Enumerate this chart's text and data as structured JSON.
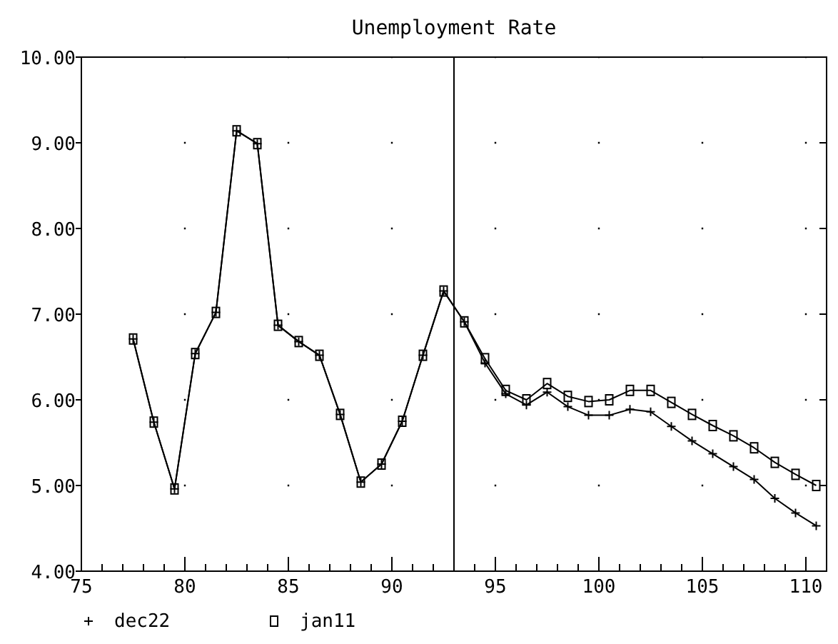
{
  "chart_data": {
    "type": "line",
    "title": "Unemployment Rate",
    "x": [
      77.5,
      78.5,
      79.5,
      80.5,
      81.5,
      82.5,
      83.5,
      84.5,
      85.5,
      86.5,
      87.5,
      88.5,
      89.5,
      90.5,
      91.5,
      92.5,
      93.5,
      94.5,
      95.5,
      96.5,
      97.5,
      98.5,
      99.5,
      100.5,
      101.5,
      102.5,
      103.5,
      104.5,
      105.5,
      106.5,
      107.5,
      108.5,
      109.5,
      110.5
    ],
    "series": [
      {
        "name": "dec22",
        "color": "#000000",
        "marker": "cross",
        "values": [
          6.71,
          5.74,
          4.96,
          6.54,
          7.02,
          9.14,
          8.99,
          6.87,
          6.68,
          6.52,
          5.83,
          5.04,
          5.25,
          5.75,
          6.52,
          7.27,
          6.91,
          6.43,
          6.07,
          5.94,
          6.09,
          5.92,
          5.82,
          5.82,
          5.89,
          5.86,
          5.69,
          5.52,
          5.37,
          5.22,
          5.07,
          4.85,
          4.68,
          4.53
        ]
      },
      {
        "name": "jan11",
        "color": "#000000",
        "marker": "square",
        "values": [
          6.71,
          5.74,
          4.96,
          6.54,
          7.02,
          9.14,
          8.99,
          6.87,
          6.68,
          6.52,
          5.83,
          5.04,
          5.25,
          5.75,
          6.52,
          7.27,
          6.91,
          6.48,
          6.11,
          6.0,
          6.19,
          6.04,
          5.98,
          6.0,
          6.11,
          6.11,
          5.97,
          5.83,
          5.7,
          5.58,
          5.44,
          5.27,
          5.13,
          5.0
        ]
      }
    ],
    "xlim": [
      75,
      111
    ],
    "xticks": [
      75,
      {
        "value": 76,
        "label": null
      },
      {
        "value": 77,
        "label": null
      },
      {
        "value": 78,
        "label": null
      },
      {
        "value": 79,
        "label": null
      },
      80,
      {
        "value": 81,
        "label": null
      },
      {
        "value": 82,
        "label": null
      },
      {
        "value": 83,
        "label": null
      },
      {
        "value": 84,
        "label": null
      },
      85,
      {
        "value": 86,
        "label": null
      },
      {
        "value": 87,
        "label": null
      },
      {
        "value": 88,
        "label": null
      },
      {
        "value": 89,
        "label": null
      },
      90,
      {
        "value": 91,
        "label": null
      },
      {
        "value": 92,
        "label": null
      },
      {
        "value": 93,
        "label": null
      },
      {
        "value": 94,
        "label": null
      },
      95,
      {
        "value": 96,
        "label": null
      },
      {
        "value": 97,
        "label": null
      },
      {
        "value": 98,
        "label": null
      },
      {
        "value": 99,
        "label": null
      },
      100,
      {
        "value": 101,
        "label": null
      },
      {
        "value": 102,
        "label": null
      },
      {
        "value": 103,
        "label": null
      },
      {
        "value": 104,
        "label": null
      },
      105,
      {
        "value": 106,
        "label": null
      },
      {
        "value": 107,
        "label": null
      },
      {
        "value": 108,
        "label": null
      },
      {
        "value": 109,
        "label": null
      },
      110
    ],
    "ylim": [
      4,
      10
    ],
    "yticks": [
      {
        "value": 4,
        "label": "4.00"
      },
      {
        "value": 5,
        "label": "5.00"
      },
      {
        "value": 6,
        "label": "6.00"
      },
      {
        "value": 7,
        "label": "7.00"
      },
      {
        "value": 8,
        "label": "8.00"
      },
      {
        "value": 9,
        "label": "9.00"
      },
      {
        "value": 10,
        "label": "10.00"
      }
    ],
    "ref_lines": [
      {
        "axis": "x",
        "value": 93,
        "color": "#000000"
      }
    ],
    "grid": true,
    "legend": "bottom left"
  }
}
